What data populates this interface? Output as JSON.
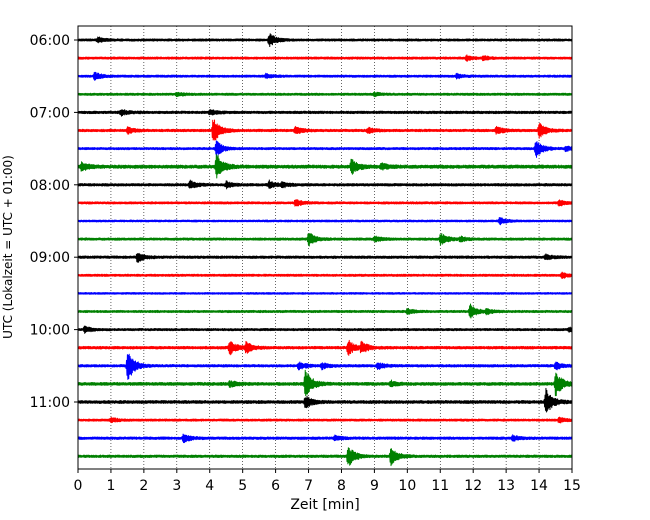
{
  "chart_data": {
    "type": "line",
    "title": "",
    "xlabel": "Zeit  [min]",
    "ylabel": "UTC (Lokalzeit = UTC + 01:00)",
    "xlim": [
      0,
      15
    ],
    "x_ticks": [
      0,
      1,
      2,
      3,
      4,
      5,
      6,
      7,
      8,
      9,
      10,
      11,
      12,
      13,
      14,
      15
    ],
    "y_tick_labels": [
      "06:00",
      "07:00",
      "08:00",
      "09:00",
      "10:00",
      "11:00"
    ],
    "grid": "vertical dotted",
    "legend": "none",
    "trace_colors": [
      "#000000",
      "#ff0000",
      "#0000ff",
      "#008000"
    ],
    "traces": [
      {
        "start": "06:00",
        "color": "#000000",
        "noise": 0.15,
        "events": [
          [
            0.6,
            0.35
          ],
          [
            5.8,
            0.9
          ]
        ]
      },
      {
        "start": "06:15",
        "color": "#ff0000",
        "noise": 0.15,
        "events": [
          [
            11.8,
            0.35
          ],
          [
            12.3,
            0.25
          ]
        ]
      },
      {
        "start": "06:30",
        "color": "#0000ff",
        "noise": 0.15,
        "events": [
          [
            0.5,
            0.55
          ],
          [
            5.7,
            0.25
          ],
          [
            11.5,
            0.3
          ]
        ]
      },
      {
        "start": "06:45",
        "color": "#008000",
        "noise": 0.15,
        "events": [
          [
            3.0,
            0.25
          ],
          [
            9.0,
            0.2
          ]
        ]
      },
      {
        "start": "07:00",
        "color": "#000000",
        "noise": 0.17,
        "events": [
          [
            1.3,
            0.4
          ],
          [
            4.0,
            0.35
          ]
        ]
      },
      {
        "start": "07:15",
        "color": "#ff0000",
        "noise": 0.17,
        "events": [
          [
            1.5,
            0.4
          ],
          [
            4.1,
            1.8
          ],
          [
            6.6,
            0.5
          ],
          [
            8.8,
            0.35
          ],
          [
            12.7,
            0.5
          ],
          [
            14.0,
            1.0
          ]
        ]
      },
      {
        "start": "07:30",
        "color": "#0000ff",
        "noise": 0.15,
        "events": [
          [
            4.2,
            1.0
          ],
          [
            13.9,
            1.2
          ],
          [
            14.8,
            0.3
          ]
        ]
      },
      {
        "start": "07:45",
        "color": "#008000",
        "noise": 0.22,
        "events": [
          [
            0.1,
            0.6
          ],
          [
            4.2,
            1.8
          ],
          [
            8.3,
            1.0
          ],
          [
            9.2,
            0.4
          ]
        ]
      },
      {
        "start": "08:00",
        "color": "#000000",
        "noise": 0.17,
        "events": [
          [
            3.4,
            0.5
          ],
          [
            4.5,
            0.4
          ],
          [
            5.8,
            0.5
          ],
          [
            6.2,
            0.3
          ]
        ]
      },
      {
        "start": "08:15",
        "color": "#ff0000",
        "noise": 0.15,
        "events": [
          [
            6.6,
            0.45
          ],
          [
            14.6,
            0.4
          ]
        ]
      },
      {
        "start": "08:30",
        "color": "#0000ff",
        "noise": 0.13,
        "events": [
          [
            12.8,
            0.45
          ]
        ]
      },
      {
        "start": "08:45",
        "color": "#008000",
        "noise": 0.16,
        "events": [
          [
            7.0,
            0.9
          ],
          [
            9.0,
            0.4
          ],
          [
            11.0,
            0.8
          ],
          [
            11.6,
            0.3
          ]
        ]
      },
      {
        "start": "09:00",
        "color": "#000000",
        "noise": 0.17,
        "events": [
          [
            1.8,
            0.65
          ],
          [
            14.2,
            0.3
          ]
        ]
      },
      {
        "start": "09:15",
        "color": "#ff0000",
        "noise": 0.15,
        "events": [
          [
            14.7,
            0.35
          ]
        ]
      },
      {
        "start": "09:30",
        "color": "#0000ff",
        "noise": 0.12,
        "events": []
      },
      {
        "start": "09:45",
        "color": "#008000",
        "noise": 0.15,
        "events": [
          [
            10.0,
            0.35
          ],
          [
            11.9,
            1.0
          ],
          [
            12.4,
            0.35
          ]
        ]
      },
      {
        "start": "10:00",
        "color": "#000000",
        "noise": 0.15,
        "events": [
          [
            0.2,
            0.4
          ],
          [
            14.9,
            0.3
          ]
        ]
      },
      {
        "start": "10:15",
        "color": "#ff0000",
        "noise": 0.18,
        "events": [
          [
            4.6,
            0.9
          ],
          [
            5.1,
            0.7
          ],
          [
            8.2,
            1.0
          ],
          [
            8.6,
            0.7
          ]
        ]
      },
      {
        "start": "10:30",
        "color": "#0000ff",
        "noise": 0.17,
        "events": [
          [
            1.5,
            2.2
          ],
          [
            6.7,
            0.5
          ],
          [
            7.4,
            0.4
          ],
          [
            9.1,
            0.45
          ],
          [
            14.5,
            0.5
          ]
        ]
      },
      {
        "start": "10:45",
        "color": "#008000",
        "noise": 0.2,
        "events": [
          [
            4.6,
            0.4
          ],
          [
            6.9,
            2.0
          ],
          [
            9.5,
            0.35
          ],
          [
            14.5,
            1.6
          ]
        ]
      },
      {
        "start": "11:00",
        "color": "#000000",
        "noise": 0.2,
        "events": [
          [
            6.9,
            0.8
          ],
          [
            14.2,
            1.7
          ]
        ]
      },
      {
        "start": "11:15",
        "color": "#ff0000",
        "noise": 0.15,
        "events": [
          [
            1.0,
            0.3
          ],
          [
            14.6,
            0.35
          ]
        ]
      },
      {
        "start": "11:30",
        "color": "#0000ff",
        "noise": 0.17,
        "events": [
          [
            3.2,
            0.55
          ],
          [
            7.8,
            0.3
          ],
          [
            13.2,
            0.3
          ]
        ]
      },
      {
        "start": "11:45",
        "color": "#008000",
        "noise": 0.17,
        "events": [
          [
            8.2,
            1.5
          ],
          [
            9.5,
            1.2
          ]
        ]
      }
    ]
  }
}
